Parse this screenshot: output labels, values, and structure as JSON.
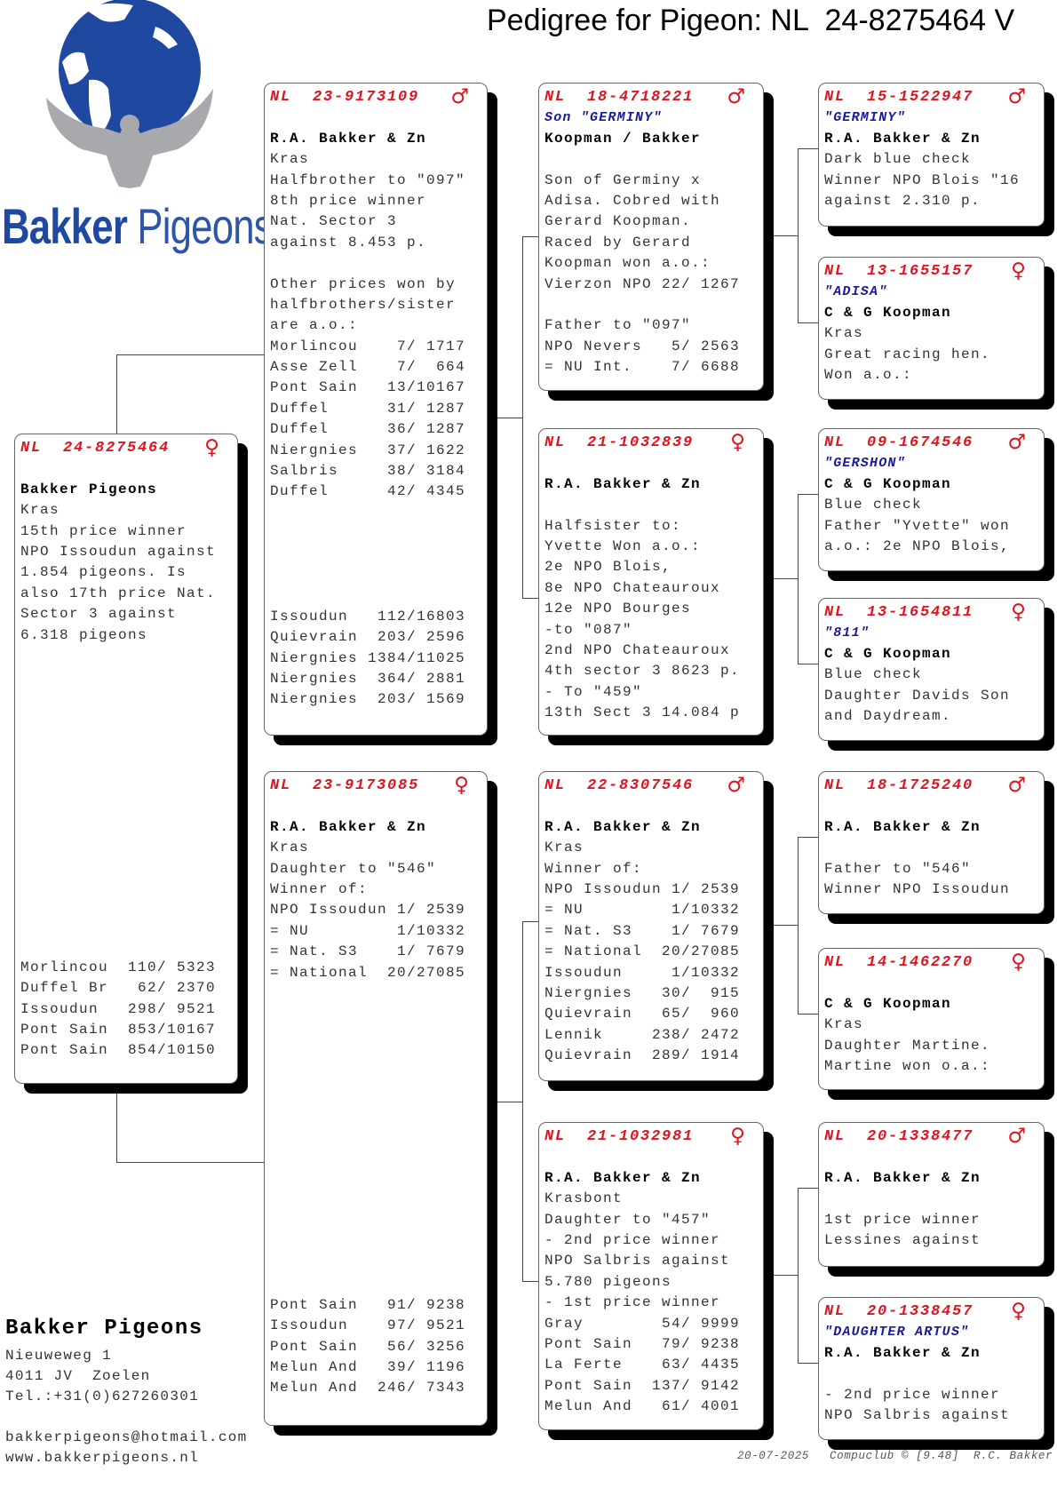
{
  "title": "Pedigree for Pigeon: NL  24-8275464 V",
  "logo": {
    "word1": "Bakker",
    "word2": "Pigeons",
    "colors": {
      "globe": "#1f48a0",
      "bird": "#a7a9ac"
    }
  },
  "colors": {
    "ring": "#e0141e",
    "name": "#1a1a9a",
    "owner": "#000000",
    "text": "#333333"
  },
  "subject": {
    "ring": "NL  24-8275464",
    "sex": "female",
    "sex_symbol": "♀",
    "name": "",
    "owner": "Bakker Pigeons",
    "lines": [
      "Kras",
      "15th price winner",
      "NPO Issoudun against",
      "1.854 pigeons. Is",
      "also 17th price Nat.",
      "Sector 3 against",
      "6.318 pigeons",
      "",
      "",
      "",
      "",
      "",
      "",
      "",
      "",
      "",
      "",
      "",
      "",
      "",
      "",
      "",
      "Morlincou  110/ 5323",
      "Duffel Br   62/ 2370",
      "Issoudun   298/ 9521",
      "Pont Sain  853/10167",
      "Pont Sain  854/10150"
    ]
  },
  "parents": [
    {
      "ring": "NL  23-9173109",
      "sex": "male",
      "sex_symbol": "♂",
      "name": "",
      "owner": "R.A. Bakker & Zn",
      "lines": [
        "Kras",
        "Halfbrother to \"097\"",
        "8th price winner",
        "Nat. Sector 3",
        "against 8.453 p.",
        "",
        "Other prices won by",
        "halfbrothers/sister",
        "are a.o.:",
        "Morlincou    7/ 1717",
        "Asse Zell    7/  664",
        "Pont Sain   13/10167",
        "Duffel      31/ 1287",
        "Duffel      36/ 1287",
        "Niergnies   37/ 1622",
        "Salbris     38/ 3184",
        "Duffel      42/ 4345",
        "",
        "",
        "",
        "",
        "",
        "Issoudun   112/16803",
        "Quievrain  203/ 2596",
        "Niergnies 1384/11025",
        "Niergnies  364/ 2881",
        "Niergnies  203/ 1569"
      ]
    },
    {
      "ring": "NL  23-9173085",
      "sex": "female",
      "sex_symbol": "♀",
      "name": "",
      "owner": "R.A. Bakker & Zn",
      "lines": [
        "Kras",
        "Daughter to \"546\"",
        "Winner of:",
        "NPO Issoudun 1/ 2539",
        "= NU         1/10332",
        "= Nat. S3    1/ 7679",
        "= National  20/27085",
        "",
        "",
        "",
        "",
        "",
        "",
        "",
        "",
        "",
        "",
        "",
        "",
        "",
        "",
        "",
        "Pont Sain   91/ 9238",
        "Issoudun    97/ 9521",
        "Pont Sain   56/ 3256",
        "Melun And   39/ 1196",
        "Melun And  246/ 7343"
      ]
    }
  ],
  "grandparents": [
    {
      "ring": "NL  18-4718221",
      "sex": "male",
      "sex_symbol": "♂",
      "name": "Son \"GERMINY\"",
      "owner": "Koopman / Bakker",
      "lines": [
        "",
        "Son of Germiny x",
        "Adisa. Cobred with",
        "Gerard Koopman.",
        "Raced by Gerard",
        "Koopman won a.o.:",
        "Vierzon NPO 22/ 1267",
        "",
        "Father to \"097\"",
        "NPO Nevers   5/ 2563",
        "= NU Int.    7/ 6688"
      ]
    },
    {
      "ring": "NL  21-1032839",
      "sex": "female",
      "sex_symbol": "♀",
      "name": "",
      "owner": "R.A. Bakker & Zn",
      "lines": [
        "",
        "Halfsister to:",
        "Yvette Won a.o.:",
        "2e NPO Blois,",
        "8e NPO Chateauroux",
        "12e NPO Bourges",
        "-to \"087\"",
        "2nd NPO Chateauroux",
        "4th sector 3 8623 p.",
        "- To \"459\"",
        "13th Sect 3 14.084 p"
      ]
    },
    {
      "ring": "NL  22-8307546",
      "sex": "male",
      "sex_symbol": "♂",
      "name": "",
      "owner": "R.A. Bakker & Zn",
      "lines": [
        "Kras",
        "Winner of:",
        "NPO Issoudun 1/ 2539",
        "= NU         1/10332",
        "= Nat. S3    1/ 7679",
        "= National  20/27085",
        "Issoudun     1/10332",
        "Niergnies   30/  915",
        "Quievrain   65/  960",
        "Lennik     238/ 2472",
        "Quievrain  289/ 1914"
      ]
    },
    {
      "ring": "NL  21-1032981",
      "sex": "female",
      "sex_symbol": "♀",
      "name": "",
      "owner": "R.A. Bakker & Zn",
      "lines": [
        "Krasbont",
        "Daughter to \"457\"",
        "- 2nd price winner",
        "NPO Salbris against",
        "5.780 pigeons",
        "- 1st price winner",
        "Gray        54/ 9999",
        "Pont Sain   79/ 9238",
        "La Ferte    63/ 4435",
        "Pont Sain  137/ 9142",
        "Melun And   61/ 4001"
      ]
    }
  ],
  "great_grandparents": [
    {
      "ring": "NL  15-1522947",
      "sex": "male",
      "sex_symbol": "♂",
      "name": "\"GERMINY\"",
      "owner": "R.A. Bakker & Zn",
      "lines": [
        "Dark blue check",
        "Winner NPO Blois \"16",
        "against 2.310 p."
      ]
    },
    {
      "ring": "NL  13-1655157",
      "sex": "female",
      "sex_symbol": "♀",
      "name": "\"ADISA\"",
      "owner": "C & G Koopman",
      "lines": [
        "Kras",
        "Great racing hen.",
        "Won a.o.:"
      ]
    },
    {
      "ring": "NL  09-1674546",
      "sex": "male",
      "sex_symbol": "♂",
      "name": "\"GERSHON\"",
      "owner": "C & G Koopman",
      "lines": [
        "Blue check",
        "Father \"Yvette\" won",
        "a.o.: 2e NPO Blois,"
      ]
    },
    {
      "ring": "NL  13-1654811",
      "sex": "female",
      "sex_symbol": "♀",
      "name": "\"811\"",
      "owner": "C & G Koopman",
      "lines": [
        "Blue check",
        "Daughter Davids Son",
        "and Daydream."
      ]
    },
    {
      "ring": "NL  18-1725240",
      "sex": "male",
      "sex_symbol": "♂",
      "name": "",
      "owner": "R.A. Bakker & Zn",
      "lines": [
        "",
        "Father to \"546\"",
        "Winner NPO Issoudun"
      ]
    },
    {
      "ring": "NL  14-1462270",
      "sex": "female",
      "sex_symbol": "♀",
      "name": "",
      "owner": "C & G Koopman",
      "lines": [
        "Kras",
        "Daughter Martine.",
        "Martine won o.a.:"
      ]
    },
    {
      "ring": "NL  20-1338477",
      "sex": "male",
      "sex_symbol": "♂",
      "name": "",
      "owner": "R.A. Bakker & Zn",
      "lines": [
        "",
        "1st price winner",
        "Lessines against"
      ]
    },
    {
      "ring": "NL  20-1338457",
      "sex": "female",
      "sex_symbol": "♀",
      "name": "\"DAUGHTER ARTUS\"",
      "owner": "R.A. Bakker & Zn",
      "lines": [
        "",
        "- 2nd price winner",
        "NPO Salbris against"
      ]
    }
  ],
  "contact": {
    "name": "Bakker Pigeons",
    "street": "Nieuweweg 1",
    "city": "4011 JV  Zoelen",
    "phone": "Tel.:+31(0)627260301",
    "email": "bakkerpigeons@hotmail.com",
    "website": "www.bakkerpigeons.nl"
  },
  "footer": {
    "date": "20-07-2025",
    "credit": "Compuclub © [9.48]  R.C. Bakker"
  }
}
